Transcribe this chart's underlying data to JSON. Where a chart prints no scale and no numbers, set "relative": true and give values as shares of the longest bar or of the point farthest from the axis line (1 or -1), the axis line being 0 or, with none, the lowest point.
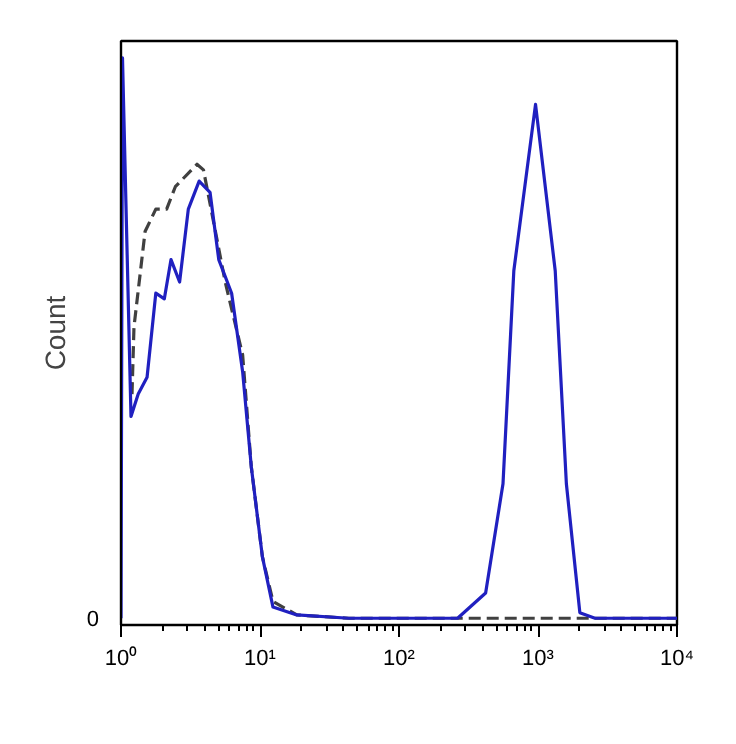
{
  "chart_data": {
    "type": "line",
    "relative": true,
    "log": "x",
    "ylabel": "Count",
    "grid": false,
    "xlim": [
      1,
      10000
    ],
    "xticks": [
      {
        "value": 1,
        "label": "10⁰"
      },
      {
        "value": 10,
        "label": "10¹"
      },
      {
        "value": 100,
        "label": "10²"
      },
      {
        "value": 1000,
        "label": "10³"
      },
      {
        "value": 10000,
        "label": "10⁴"
      }
    ],
    "annotations": [
      "0"
    ],
    "series": [
      {
        "color": "#404040",
        "line_style": "dashed",
        "x": [
          1.2,
          1.24,
          1.49,
          1.78,
          2.13,
          2.46,
          3.52,
          3.92,
          5.62,
          7.5,
          8.66,
          10.4,
          12.4,
          18.4,
          43.6,
          264,
          420,
          560,
          1000,
          2000,
          10000
        ],
        "values": [
          0.4,
          0.52,
          0.69,
          0.73,
          0.73,
          0.77,
          0.81,
          0.8,
          0.6,
          0.47,
          0.27,
          0.11,
          0.03,
          0.006,
          0,
          0,
          0,
          0,
          0,
          0,
          0
        ]
      },
      {
        "color": "#2020c0",
        "line_style": "solid",
        "x": [
          1,
          1.025,
          1.18,
          1.33,
          1.54,
          1.78,
          2.05,
          2.29,
          2.64,
          3.05,
          3.65,
          4.37,
          5.05,
          6.25,
          7.5,
          8.66,
          10.4,
          12.4,
          18.4,
          43.6,
          264,
          420,
          560,
          670,
          960,
          1330,
          1600,
          2000,
          2570,
          10000
        ],
        "values": [
          0,
          1,
          0.36,
          0.4,
          0.43,
          0.58,
          0.57,
          0.64,
          0.6,
          0.73,
          0.78,
          0.76,
          0.64,
          0.58,
          0.44,
          0.27,
          0.11,
          0.02,
          0.006,
          0,
          0,
          0.045,
          0.24,
          0.62,
          0.917,
          0.62,
          0.24,
          0.01,
          0,
          0
        ]
      }
    ]
  }
}
